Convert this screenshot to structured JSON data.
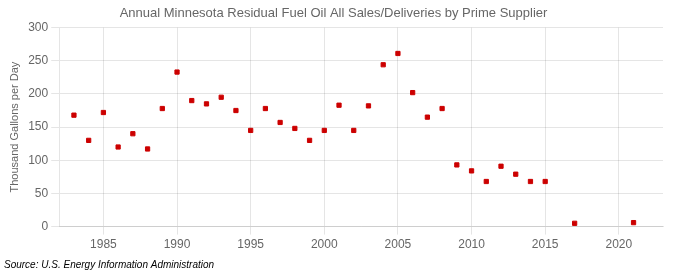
{
  "chart_data": {
    "type": "scatter",
    "title": "Annual Minnesota Residual Fuel Oil All Sales/Deliveries by Prime Supplier",
    "y_label": "Thousand Gallons per Day",
    "annotations": [
      "Source: U.S. Energy Information Administration"
    ],
    "x": [
      1983,
      1984,
      1985,
      1986,
      1987,
      1988,
      1989,
      1990,
      1991,
      1992,
      1993,
      1994,
      1995,
      1996,
      1997,
      1998,
      1999,
      2000,
      2001,
      2002,
      2003,
      2004,
      2005,
      2006,
      2007,
      2008,
      2009,
      2010,
      2011,
      2012,
      2013,
      2014,
      2015,
      2017,
      2021
    ],
    "values": [
      168,
      130,
      172,
      120,
      140,
      117,
      178,
      233,
      190,
      185,
      195,
      175,
      145,
      178,
      157,
      148,
      130,
      145,
      183,
      145,
      182,
      244,
      261,
      202,
      165,
      178,
      93,
      84,
      68,
      91,
      79,
      68,
      68,
      5,
      6
    ],
    "color": "#cc0000",
    "marker": "square",
    "xlim": [
      1982,
      2023
    ],
    "xticks": [
      1985,
      1990,
      1995,
      2000,
      2005,
      2010,
      2015,
      2020
    ],
    "ylim": [
      0,
      300
    ],
    "yticks": [
      0,
      50,
      100,
      150,
      200,
      250,
      300
    ],
    "grid": true,
    "legend": false
  }
}
